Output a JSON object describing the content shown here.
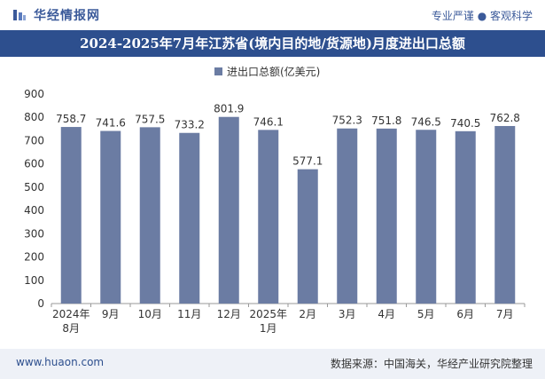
{
  "header": {
    "logo_text": "华经情报网",
    "tagline": "专业严谨 ● 客观科学"
  },
  "footer": {
    "url": "www.huaon.com",
    "source": "数据来源：中国海关，华经产业研究院整理"
  },
  "colors": {
    "bar": "#6b7ca3",
    "title_band": "#2d4f8e",
    "brand": "#3b5a9a"
  },
  "chart_data": {
    "type": "bar",
    "title": "2024-2025年7月年江苏省(境内目的地/货源地)月度进出口总额",
    "legend_position": "top-center",
    "series": [
      {
        "name": "进出口总额(亿美元)",
        "values": [
          758.7,
          741.6,
          757.5,
          733.2,
          801.9,
          746.1,
          577.1,
          752.3,
          751.8,
          746.5,
          740.5,
          762.8
        ]
      }
    ],
    "categories": [
      [
        "2024年",
        "8月"
      ],
      [
        "9月"
      ],
      [
        "10月"
      ],
      [
        "11月"
      ],
      [
        "12月"
      ],
      [
        "2025年",
        "1月"
      ],
      [
        "2月"
      ],
      [
        "3月"
      ],
      [
        "4月"
      ],
      [
        "5月"
      ],
      [
        "6月"
      ],
      [
        "7月"
      ]
    ],
    "ylim": [
      0,
      900
    ],
    "yticks": [
      0,
      100,
      200,
      300,
      400,
      500,
      600,
      700,
      800,
      900
    ],
    "grid": false
  }
}
